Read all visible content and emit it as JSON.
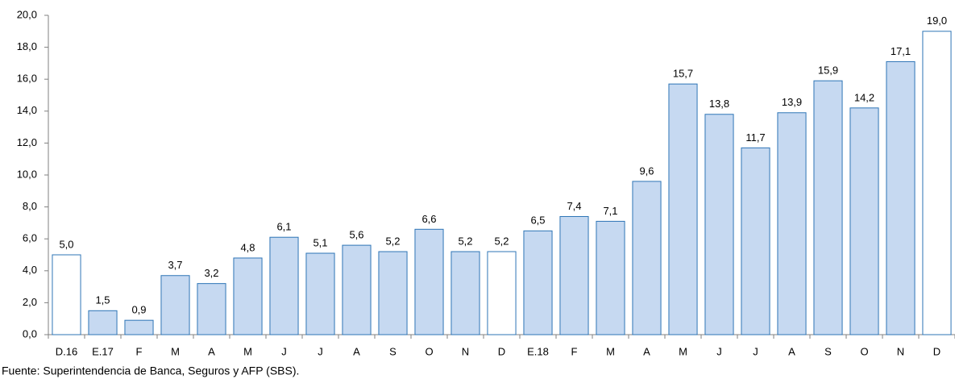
{
  "chart_data": {
    "type": "bar",
    "categories": [
      "D.16",
      "E.17",
      "F",
      "M",
      "A",
      "M",
      "J",
      "J",
      "A",
      "S",
      "O",
      "N",
      "D",
      "E.18",
      "F",
      "M",
      "A",
      "M",
      "J",
      "J",
      "A",
      "S",
      "O",
      "N",
      "D"
    ],
    "values": [
      5.0,
      1.5,
      0.9,
      3.7,
      3.2,
      4.8,
      6.1,
      5.1,
      5.6,
      5.2,
      6.6,
      5.2,
      5.2,
      6.5,
      7.4,
      7.1,
      9.6,
      15.7,
      13.8,
      11.7,
      13.9,
      15.9,
      14.2,
      17.1,
      19.0
    ],
    "value_labels": [
      "5,0",
      "1,5",
      "0,9",
      "3,7",
      "3,2",
      "4,8",
      "6,1",
      "5,1",
      "5,6",
      "5,2",
      "6,6",
      "5,2",
      "5,2",
      "6,5",
      "7,4",
      "7,1",
      "9,6",
      "15,7",
      "13,8",
      "11,7",
      "13,9",
      "15,9",
      "14,2",
      "17,1",
      "19,0"
    ],
    "colors": [
      "#ffffff",
      "#c6d9f1",
      "#c6d9f1",
      "#c6d9f1",
      "#c6d9f1",
      "#c6d9f1",
      "#c6d9f1",
      "#c6d9f1",
      "#c6d9f1",
      "#c6d9f1",
      "#c6d9f1",
      "#c6d9f1",
      "#ffffff",
      "#c6d9f1",
      "#c6d9f1",
      "#c6d9f1",
      "#c6d9f1",
      "#c6d9f1",
      "#c6d9f1",
      "#c6d9f1",
      "#c6d9f1",
      "#c6d9f1",
      "#c6d9f1",
      "#c6d9f1",
      "#ffffff"
    ],
    "edge_color": "#2e75b6",
    "ylim": [
      0,
      20
    ],
    "yticks": [
      {
        "value": 0,
        "label": "0,0"
      },
      {
        "value": 2,
        "label": "2,0"
      },
      {
        "value": 4,
        "label": "4,0"
      },
      {
        "value": 6,
        "label": "6,0"
      },
      {
        "value": 8,
        "label": "8,0"
      },
      {
        "value": 10,
        "label": "10,0"
      },
      {
        "value": 12,
        "label": "12,0"
      },
      {
        "value": 14,
        "label": "14,0"
      },
      {
        "value": 16,
        "label": "16,0"
      },
      {
        "value": 18,
        "label": "18,0"
      },
      {
        "value": 20,
        "label": "20,0"
      }
    ],
    "grid": false,
    "source": "Fuente: Superintendencia de Banca, Seguros y AFP (SBS)."
  }
}
